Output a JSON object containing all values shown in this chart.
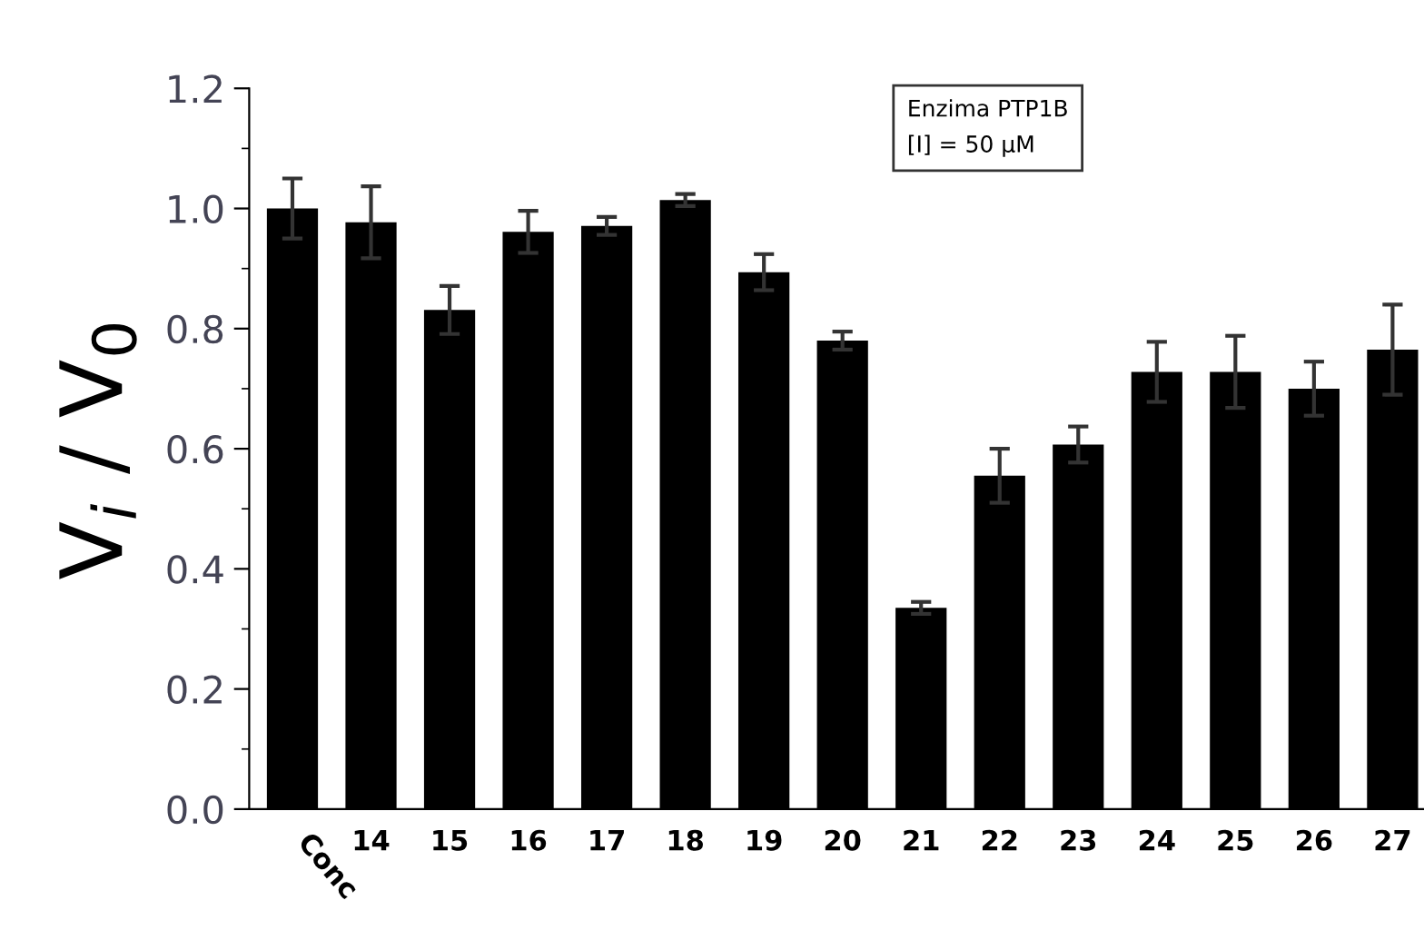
{
  "chart_data": {
    "type": "bar",
    "ylabel": "V$_{i}$ / V$_{0}$",
    "annotations": [
      "Enzima PTP1B\n[I] = 50 μM"
    ],
    "categories": [
      "Conc",
      "14",
      "15",
      "16",
      "17",
      "18",
      "19",
      "20",
      "21",
      "22",
      "23",
      "24",
      "25",
      "26",
      "27"
    ],
    "values": [
      1.0,
      0.977,
      0.831,
      0.961,
      0.971,
      1.014,
      0.894,
      0.78,
      0.335,
      0.555,
      0.607,
      0.728,
      0.728,
      0.7,
      0.765
    ],
    "errors": [
      0.05,
      0.06,
      0.04,
      0.035,
      0.015,
      0.01,
      0.03,
      0.015,
      0.01,
      0.045,
      0.03,
      0.05,
      0.06,
      0.045,
      0.075
    ],
    "color": "#000000",
    "ylim": [
      0,
      1.2
    ],
    "yticks": [
      {
        "value": 0,
        "label": "0.0"
      },
      0.2,
      0.4,
      0.6,
      0.8,
      {
        "value": 1,
        "label": "1.0"
      },
      1.2
    ],
    "grid": false,
    "legend": false
  }
}
